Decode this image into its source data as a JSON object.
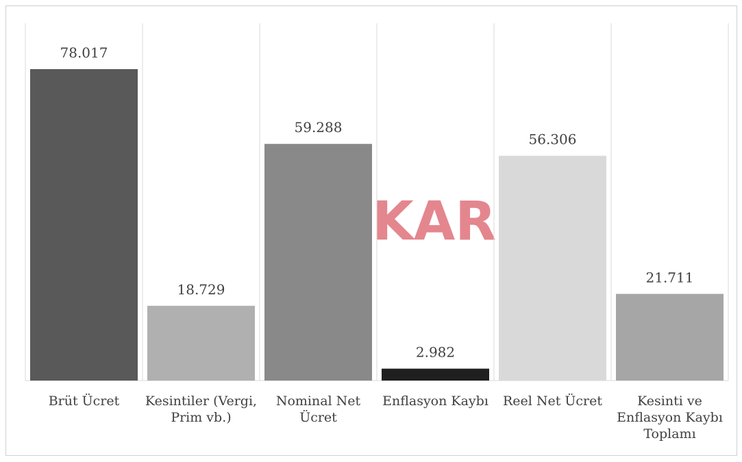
{
  "chart_data": {
    "type": "bar",
    "watermark": "DiSKAR",
    "categories": [
      "Brüt Ücret",
      "Kesintiler (Vergi, Prim vb.)",
      "Nominal Net Ücret",
      "Enflasyon Kaybı",
      "Reel Net Ücret",
      "Kesinti ve Enflasyon Kaybı Toplamı"
    ],
    "values": [
      78017,
      18729,
      59288,
      2982,
      56306,
      21711
    ],
    "value_labels": [
      "78.017",
      "18.729",
      "59.288",
      "2.982",
      "56.306",
      "21.711"
    ],
    "colors": [
      "#595959",
      "#b0b0b0",
      "#898989",
      "#1f1f1f",
      "#d9d9d9",
      "#a6a6a6"
    ]
  }
}
